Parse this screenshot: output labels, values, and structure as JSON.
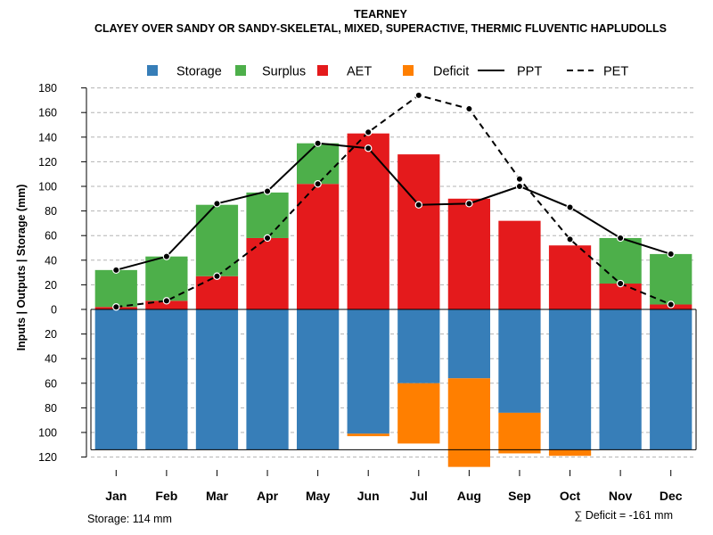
{
  "chart_data": {
    "type": "bar",
    "title": "TEARNEY",
    "subtitle": "CLAYEY OVER SANDY OR SANDY-SKELETAL, MIXED, SUPERACTIVE, THERMIC FLUVENTIC HAPLUDOLLS",
    "ylabel": "Inputs | Outputs | Storage     (mm)",
    "ylim": [
      -120,
      180
    ],
    "yticks": [
      180,
      160,
      140,
      120,
      100,
      80,
      60,
      40,
      20,
      0,
      -20,
      -40,
      -60,
      -80,
      -100,
      -120
    ],
    "ytick_labels": [
      "180",
      "160",
      "140",
      "120",
      "100",
      "80",
      "60",
      "40",
      "20",
      "0",
      "20",
      "40",
      "60",
      "80",
      "100",
      "120"
    ],
    "categories": [
      "Jan",
      "Feb",
      "Mar",
      "Apr",
      "May",
      "Jun",
      "Jul",
      "Aug",
      "Sep",
      "Oct",
      "Nov",
      "Dec"
    ],
    "legend": {
      "position": "top",
      "entries": [
        {
          "label": "Storage",
          "kind": "box",
          "color": "#377EB8"
        },
        {
          "label": "Surplus",
          "kind": "box",
          "color": "#4DAF4A"
        },
        {
          "label": "AET",
          "kind": "box",
          "color": "#E41A1C"
        },
        {
          "label": "Deficit",
          "kind": "box",
          "color": "#FF7F00"
        },
        {
          "label": "PPT",
          "kind": "solid-line",
          "color": "#000000"
        },
        {
          "label": "PET",
          "kind": "dashed-line",
          "color": "#000000"
        }
      ]
    },
    "series": [
      {
        "name": "AET",
        "color": "#E41A1C",
        "values": [
          2,
          7,
          27,
          58,
          102,
          143,
          126,
          90,
          72,
          52,
          21,
          4
        ]
      },
      {
        "name": "Surplus",
        "color": "#4DAF4A",
        "values": [
          30,
          36,
          58,
          37,
          33,
          0,
          0,
          0,
          0,
          0,
          37,
          41
        ]
      },
      {
        "name": "Storage",
        "color": "#377EB8",
        "values": [
          114,
          114,
          114,
          114,
          114,
          101,
          60,
          56,
          84,
          114,
          114,
          114
        ]
      },
      {
        "name": "Deficit",
        "color": "#FF7F00",
        "values": [
          0,
          0,
          0,
          0,
          0,
          2,
          49,
          72,
          33,
          5,
          0,
          0
        ]
      },
      {
        "name": "PPT",
        "color": "#000000",
        "style": "solid",
        "values": [
          32,
          43,
          86,
          96,
          135,
          131,
          85,
          86,
          100,
          83,
          58,
          45
        ]
      },
      {
        "name": "PET",
        "color": "#000000",
        "style": "dashed",
        "values": [
          2,
          7,
          27,
          58,
          102,
          144,
          174,
          163,
          106,
          57,
          21,
          4
        ]
      }
    ],
    "storage_capacity": 114,
    "footnote_left": "Storage: 114 mm",
    "footnote_right": "∑ Deficit = -161 mm"
  }
}
